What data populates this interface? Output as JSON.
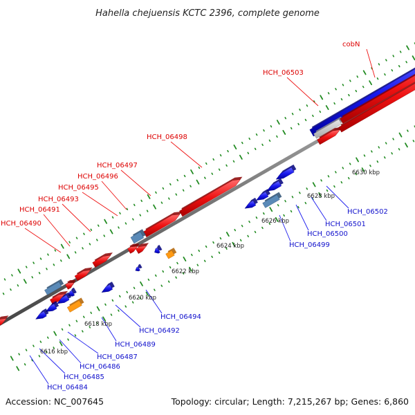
{
  "title": "Hahella chejuensis KCTC 2396, complete genome",
  "footer": {
    "accession": "Accession: NC_007645",
    "summary": "Topology: circular; Length: 7,215,267 bp; Genes: 6,860"
  },
  "ticks": [
    "6616 kbp",
    "6618 kbp",
    "6620 kbp",
    "6622 kbp",
    "6624 kbp",
    "6626 kbp",
    "6628 kbp",
    "6630 kbp"
  ],
  "genes_top": [
    "HCH_06490",
    "HCH_06491",
    "HCH_06493",
    "HCH_06495",
    "HCH_06496",
    "HCH_06497",
    "HCH_06498",
    "HCH_06503",
    "cobN"
  ],
  "genes_bottom": [
    "HCH_06484",
    "HCH_06485",
    "HCH_06486",
    "HCH_06487",
    "HCH_06489",
    "HCH_06492",
    "HCH_06494",
    "HCH_06499",
    "HCH_06500",
    "HCH_06501",
    "HCH_06502"
  ],
  "colors": {
    "forward": "#ee1111",
    "reverse": "#1a1aee",
    "rna": "#ff9a14",
    "other": "#5a8ab8",
    "unknown": "#c8c8c8",
    "tick": "#228b22",
    "backbone": "#888888"
  }
}
